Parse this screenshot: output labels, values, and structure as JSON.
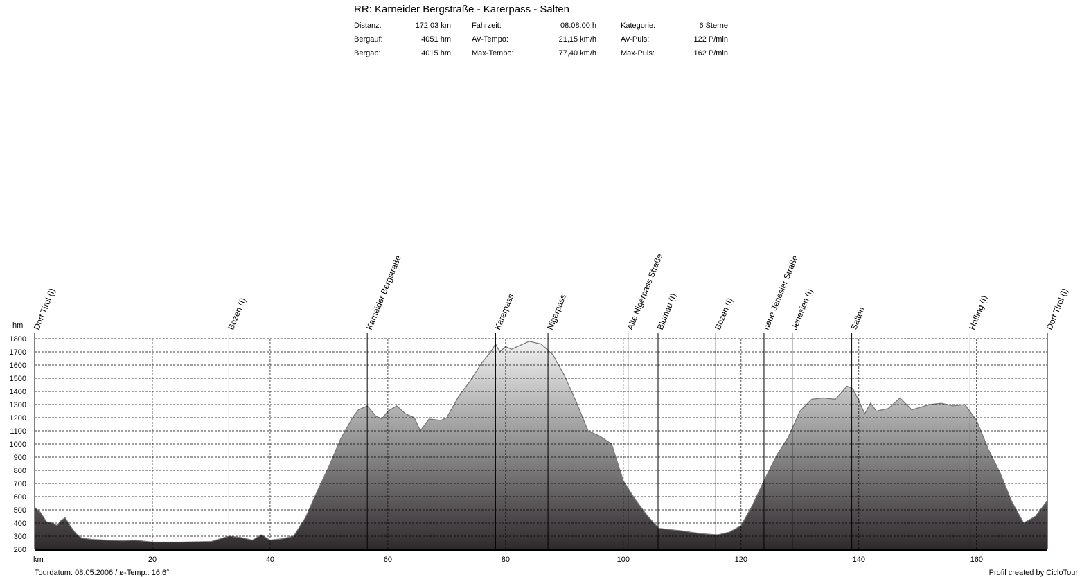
{
  "title": "RR: Karneider Bergstraße - Karerpass - Salten",
  "stats": [
    [
      [
        "Distanz:",
        "172,03 km"
      ],
      [
        "Fahrzeit:",
        "08:08:00 h"
      ],
      [
        "Kategorie:",
        "6 Sterne"
      ]
    ],
    [
      [
        "Bergauf:",
        "4051 hm"
      ],
      [
        "AV-Tempo:",
        "21,15 km/h"
      ],
      [
        "AV-Puls:",
        "122 P/min"
      ]
    ],
    [
      [
        "Bergab:",
        "4015 hm"
      ],
      [
        "Max-Tempo:",
        "77,40 km/h"
      ],
      [
        "Max-Puls:",
        "162 P/min"
      ]
    ]
  ],
  "footer": {
    "left": "Tourdatum: 08.05.2006  /  ø-Temp.: 16,6°",
    "right": "Profil created by CicloTour"
  },
  "colors": {
    "profile_top": "#f2f2f2",
    "profile_bottom": "#2f292c",
    "outline": "#777777",
    "grid": "#000000"
  },
  "chart_data": {
    "type": "area",
    "xlabel": "km",
    "ylabel": "hm",
    "xlim": [
      0,
      172.03
    ],
    "ylim": [
      200,
      1800
    ],
    "xticks": [
      0,
      20,
      40,
      60,
      80,
      100,
      120,
      140,
      160
    ],
    "xtick_labels": [
      "",
      "20",
      "40",
      "60",
      "80",
      "100",
      "120",
      "140",
      "160"
    ],
    "yticks": [
      200,
      300,
      400,
      500,
      600,
      700,
      800,
      900,
      1000,
      1100,
      1200,
      1300,
      1400,
      1500,
      1600,
      1700,
      1800
    ],
    "grid": true,
    "profile": [
      [
        0,
        520
      ],
      [
        1,
        480
      ],
      [
        2,
        410
      ],
      [
        3,
        400
      ],
      [
        3.8,
        380
      ],
      [
        4.5,
        420
      ],
      [
        5.2,
        440
      ],
      [
        6,
        380
      ],
      [
        7,
        320
      ],
      [
        8,
        285
      ],
      [
        10,
        275
      ],
      [
        12,
        270
      ],
      [
        15,
        265
      ],
      [
        17,
        270
      ],
      [
        20,
        255
      ],
      [
        25,
        255
      ],
      [
        30,
        260
      ],
      [
        33,
        300
      ],
      [
        35,
        290
      ],
      [
        37,
        270
      ],
      [
        38.5,
        310
      ],
      [
        40,
        270
      ],
      [
        42,
        280
      ],
      [
        44,
        300
      ],
      [
        46,
        440
      ],
      [
        48,
        640
      ],
      [
        50,
        830
      ],
      [
        52,
        1040
      ],
      [
        54,
        1200
      ],
      [
        55,
        1260
      ],
      [
        56.5,
        1290
      ],
      [
        58,
        1210
      ],
      [
        59,
        1190
      ],
      [
        60,
        1250
      ],
      [
        61.5,
        1290
      ],
      [
        63,
        1230
      ],
      [
        64.5,
        1200
      ],
      [
        65.5,
        1100
      ],
      [
        67,
        1190
      ],
      [
        69,
        1180
      ],
      [
        70,
        1200
      ],
      [
        72,
        1360
      ],
      [
        74,
        1480
      ],
      [
        76,
        1620
      ],
      [
        77.5,
        1700
      ],
      [
        78.3,
        1760
      ],
      [
        79,
        1700
      ],
      [
        80,
        1740
      ],
      [
        81,
        1720
      ],
      [
        82,
        1740
      ],
      [
        84,
        1780
      ],
      [
        86,
        1760
      ],
      [
        88,
        1680
      ],
      [
        90,
        1520
      ],
      [
        92,
        1320
      ],
      [
        94,
        1100
      ],
      [
        96,
        1060
      ],
      [
        98,
        1000
      ],
      [
        100,
        720
      ],
      [
        102,
        580
      ],
      [
        104,
        460
      ],
      [
        106,
        360
      ],
      [
        108,
        350
      ],
      [
        110,
        340
      ],
      [
        113,
        320
      ],
      [
        116,
        310
      ],
      [
        118,
        330
      ],
      [
        120,
        380
      ],
      [
        122,
        540
      ],
      [
        124,
        730
      ],
      [
        126,
        910
      ],
      [
        128,
        1050
      ],
      [
        130,
        1250
      ],
      [
        132,
        1340
      ],
      [
        134,
        1350
      ],
      [
        136,
        1340
      ],
      [
        138,
        1440
      ],
      [
        139,
        1420
      ],
      [
        140,
        1330
      ],
      [
        141,
        1230
      ],
      [
        142,
        1310
      ],
      [
        143,
        1250
      ],
      [
        145,
        1270
      ],
      [
        147,
        1350
      ],
      [
        149,
        1260
      ],
      [
        152,
        1300
      ],
      [
        154,
        1310
      ],
      [
        156,
        1290
      ],
      [
        158,
        1300
      ],
      [
        160,
        1180
      ],
      [
        162,
        960
      ],
      [
        164,
        780
      ],
      [
        166,
        560
      ],
      [
        168,
        400
      ],
      [
        170,
        450
      ],
      [
        172.03,
        570
      ]
    ],
    "waypoints": [
      {
        "km": 0,
        "name": "Dorf Tirol (I)"
      },
      {
        "km": 33,
        "name": "Bozen (I)"
      },
      {
        "km": 56.5,
        "name": "Karneider Bergstraße"
      },
      {
        "km": 78.3,
        "name": "Karerpass"
      },
      {
        "km": 87.2,
        "name": "Nigerpass"
      },
      {
        "km": 100.8,
        "name": "Alte Nigerpass Straße"
      },
      {
        "km": 105.9,
        "name": "Blumau (I)"
      },
      {
        "km": 115.7,
        "name": "Bozen (I)"
      },
      {
        "km": 123.9,
        "name": "neue Jenesier Straße"
      },
      {
        "km": 128.7,
        "name": "Jenesien (I)"
      },
      {
        "km": 138.8,
        "name": "Salten"
      },
      {
        "km": 158.9,
        "name": "Hafling (I)"
      },
      {
        "km": 172.03,
        "name": "Dorf Tirol (I)"
      }
    ]
  }
}
